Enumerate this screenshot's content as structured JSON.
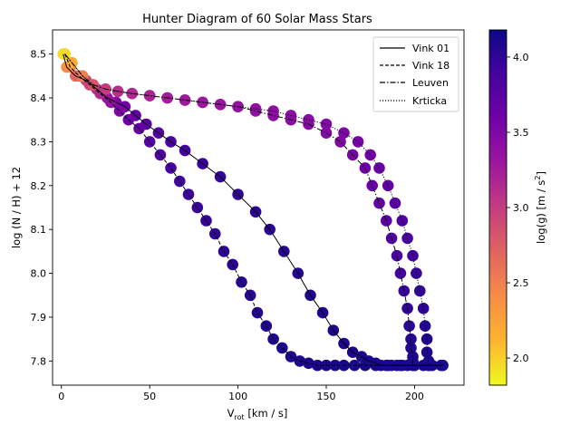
{
  "chart_data": {
    "type": "scatter",
    "title": "Hunter Diagram of 60 Solar Mass Stars",
    "xlabel_main": "V",
    "xlabel_sub": "rot",
    "xlabel_rest": " [km / s]",
    "ylabel": "log (N / H) + 12",
    "xlim": [
      -5,
      228
    ],
    "ylim": [
      7.745,
      8.555
    ],
    "xticks": [
      0,
      50,
      100,
      150,
      200
    ],
    "yticks": [
      7.8,
      7.9,
      8.0,
      8.1,
      8.2,
      8.3,
      8.4,
      8.5
    ],
    "colorbar": {
      "label_main": "log(g) [m / s",
      "label_sup": "2",
      "label_end": "]",
      "range": [
        1.82,
        4.18
      ],
      "ticks": [
        2.0,
        2.5,
        3.0,
        3.5,
        4.0
      ],
      "colormap": "plasma_r"
    },
    "legend": {
      "position": "top-right",
      "entries": [
        {
          "label": "Vink 01",
          "dash": "solid"
        },
        {
          "label": "Vink 18",
          "dash": "dashed"
        },
        {
          "label": "Leuven",
          "dash": "dashdot"
        },
        {
          "label": "Krticka",
          "dash": "dotted"
        }
      ]
    },
    "series": [
      {
        "name": "Vink 01",
        "dash": "solid",
        "x": [
          1,
          3,
          8,
          14,
          20,
          26,
          31,
          36,
          42,
          48,
          55,
          62,
          70,
          80,
          90,
          100,
          110,
          118,
          126,
          134,
          141,
          148,
          154,
          160,
          165,
          170,
          174,
          178,
          181,
          184,
          187,
          190,
          193,
          196,
          200,
          205,
          210,
          215
        ],
        "y": [
          8.5,
          8.47,
          8.45,
          8.44,
          8.42,
          8.4,
          8.39,
          8.38,
          8.36,
          8.34,
          8.32,
          8.3,
          8.28,
          8.25,
          8.22,
          8.18,
          8.14,
          8.1,
          8.05,
          8.0,
          7.95,
          7.91,
          7.87,
          7.84,
          7.82,
          7.81,
          7.8,
          7.795,
          7.79,
          7.79,
          7.79,
          7.79,
          7.79,
          7.79,
          7.79,
          7.79,
          7.79,
          7.79
        ],
        "logg": [
          1.95,
          2.4,
          2.7,
          2.9,
          3.1,
          3.3,
          3.5,
          3.6,
          3.7,
          3.75,
          3.8,
          3.85,
          3.9,
          3.95,
          3.98,
          4.0,
          4.02,
          4.03,
          4.05,
          4.06,
          4.07,
          4.08,
          4.09,
          4.1,
          4.1,
          4.1,
          4.11,
          4.11,
          4.12,
          4.12,
          4.12,
          4.12,
          4.12,
          4.12,
          4.12,
          4.12,
          4.12,
          4.12
        ]
      },
      {
        "name": "Vink 18",
        "dash": "dashed",
        "x": [
          2,
          5,
          10,
          16,
          22,
          28,
          33,
          38,
          44,
          50,
          56,
          62,
          67,
          72,
          77,
          82,
          87,
          92,
          97,
          102,
          107,
          111,
          116,
          120,
          125,
          130,
          135,
          140,
          145,
          150,
          155,
          160,
          166,
          172,
          178,
          185,
          192,
          200,
          208,
          216
        ],
        "y": [
          8.5,
          8.47,
          8.45,
          8.43,
          8.41,
          8.39,
          8.37,
          8.35,
          8.33,
          8.3,
          8.27,
          8.24,
          8.21,
          8.18,
          8.15,
          8.12,
          8.09,
          8.05,
          8.02,
          7.98,
          7.95,
          7.91,
          7.88,
          7.85,
          7.83,
          7.81,
          7.8,
          7.795,
          7.79,
          7.79,
          7.79,
          7.79,
          7.79,
          7.79,
          7.79,
          7.79,
          7.79,
          7.79,
          7.79,
          7.79
        ],
        "logg": [
          1.95,
          2.4,
          2.7,
          2.95,
          3.15,
          3.35,
          3.5,
          3.62,
          3.7,
          3.77,
          3.82,
          3.87,
          3.9,
          3.93,
          3.96,
          3.98,
          4.0,
          4.02,
          4.03,
          4.04,
          4.05,
          4.06,
          4.07,
          4.08,
          4.09,
          4.1,
          4.1,
          4.11,
          4.11,
          4.12,
          4.12,
          4.12,
          4.12,
          4.12,
          4.12,
          4.12,
          4.12,
          4.12,
          4.12,
          4.12
        ]
      },
      {
        "name": "Leuven",
        "dash": "dashdot",
        "x": [
          2,
          6,
          12,
          18,
          25,
          32,
          40,
          50,
          60,
          70,
          80,
          90,
          100,
          110,
          120,
          130,
          140,
          150,
          158,
          165,
          172,
          176,
          180,
          184,
          187,
          190,
          192,
          194,
          196,
          197,
          198,
          198,
          199,
          199,
          199
        ],
        "y": [
          8.5,
          8.48,
          8.45,
          8.43,
          8.42,
          8.415,
          8.41,
          8.405,
          8.4,
          8.395,
          8.39,
          8.385,
          8.38,
          8.37,
          8.36,
          8.35,
          8.34,
          8.32,
          8.3,
          8.27,
          8.24,
          8.2,
          8.16,
          8.12,
          8.08,
          8.04,
          8.0,
          7.96,
          7.92,
          7.88,
          7.85,
          7.83,
          7.81,
          7.8,
          7.79
        ],
        "logg": [
          1.95,
          2.2,
          2.5,
          2.8,
          3.0,
          3.1,
          3.15,
          3.2,
          3.25,
          3.28,
          3.3,
          3.32,
          3.35,
          3.38,
          3.4,
          3.42,
          3.45,
          3.48,
          3.5,
          3.55,
          3.6,
          3.65,
          3.7,
          3.75,
          3.8,
          3.85,
          3.9,
          3.95,
          4.0,
          4.02,
          4.05,
          4.07,
          4.09,
          4.1,
          4.11
        ]
      },
      {
        "name": "Krticka",
        "dash": "dotted",
        "x": [
          2,
          6,
          12,
          18,
          25,
          32,
          40,
          50,
          60,
          70,
          80,
          90,
          100,
          110,
          120,
          130,
          140,
          150,
          160,
          168,
          175,
          180,
          185,
          189,
          193,
          196,
          199,
          201,
          203,
          205,
          206,
          207,
          207,
          208,
          208
        ],
        "y": [
          8.5,
          8.48,
          8.45,
          8.43,
          8.42,
          8.415,
          8.41,
          8.405,
          8.4,
          8.395,
          8.39,
          8.385,
          8.38,
          8.375,
          8.37,
          8.36,
          8.35,
          8.34,
          8.32,
          8.3,
          8.27,
          8.24,
          8.2,
          8.16,
          8.12,
          8.08,
          8.04,
          8.0,
          7.96,
          7.92,
          7.88,
          7.85,
          7.82,
          7.8,
          7.79
        ],
        "logg": [
          1.95,
          2.2,
          2.5,
          2.8,
          3.0,
          3.1,
          3.15,
          3.2,
          3.25,
          3.28,
          3.3,
          3.32,
          3.35,
          3.38,
          3.4,
          3.42,
          3.45,
          3.48,
          3.5,
          3.55,
          3.6,
          3.65,
          3.7,
          3.75,
          3.8,
          3.85,
          3.9,
          3.95,
          4.0,
          4.02,
          4.05,
          4.07,
          4.09,
          4.1,
          4.11
        ]
      }
    ]
  }
}
